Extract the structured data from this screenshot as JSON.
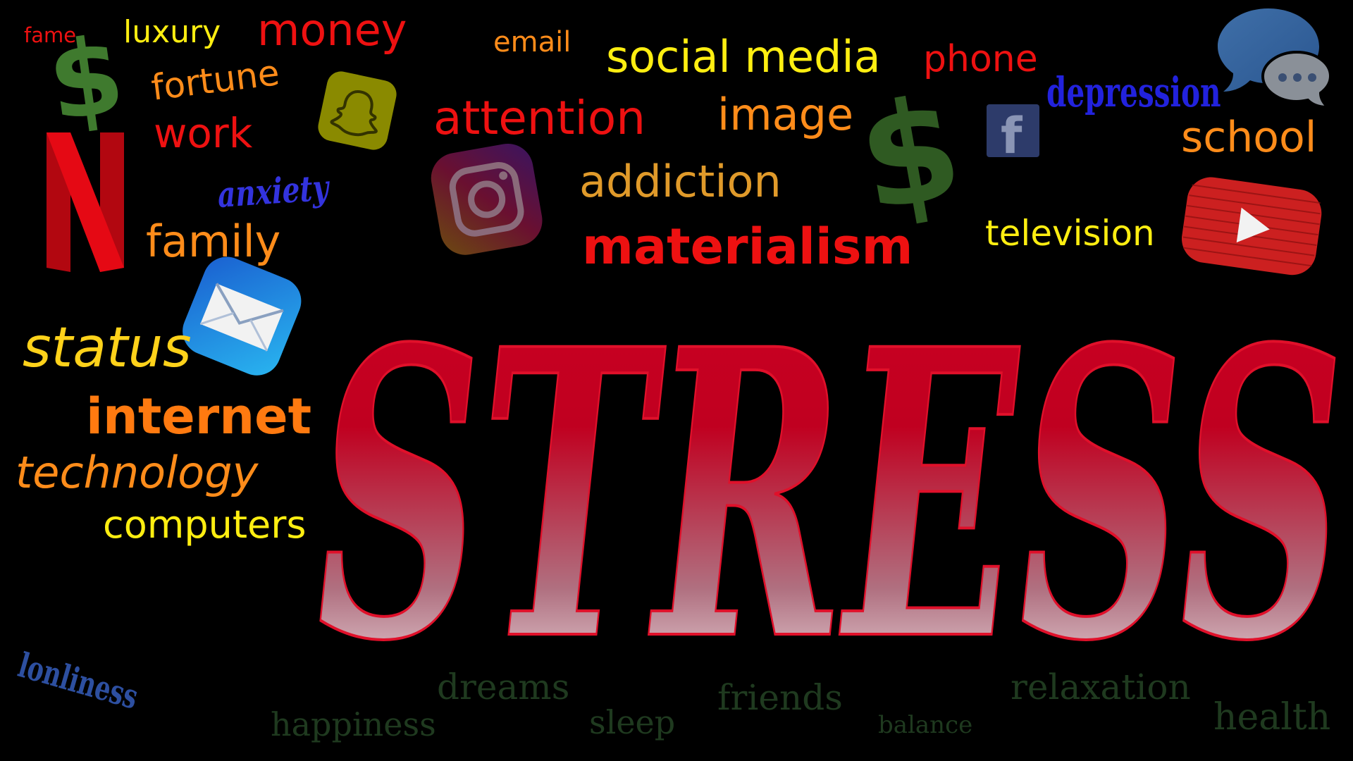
{
  "headline": "STRESS",
  "words": {
    "fame": "fame",
    "luxury": "luxury",
    "money": "money",
    "email": "email",
    "social_media": "social media",
    "phone": "phone",
    "depression": "depression",
    "fortune": "fortune",
    "work": "work",
    "attention": "attention",
    "image": "image",
    "school": "school",
    "anxiety": "anxiety",
    "addiction": "addiction",
    "family": "family",
    "materialism": "materialism",
    "television": "television",
    "status": "status",
    "internet": "internet",
    "technology": "technology",
    "computers": "computers",
    "lonliness": "lonliness",
    "dreams": "dreams",
    "friends": "friends",
    "relaxation": "relaxation",
    "happiness": "happiness",
    "sleep": "sleep",
    "balance": "balance",
    "health": "health"
  },
  "icons": {
    "dollar_sign": "$",
    "netflix_letter": "N",
    "facebook_letter": "f"
  },
  "colors": {
    "background": "#000000",
    "red": "#ee1111",
    "orange": "#ff8c1a",
    "yellow": "#ffee11",
    "blue": "#2222dd",
    "dark_green": "#1f3a1f",
    "dollar_green": "#3f7a2e",
    "stress_red": "#cc0022"
  }
}
